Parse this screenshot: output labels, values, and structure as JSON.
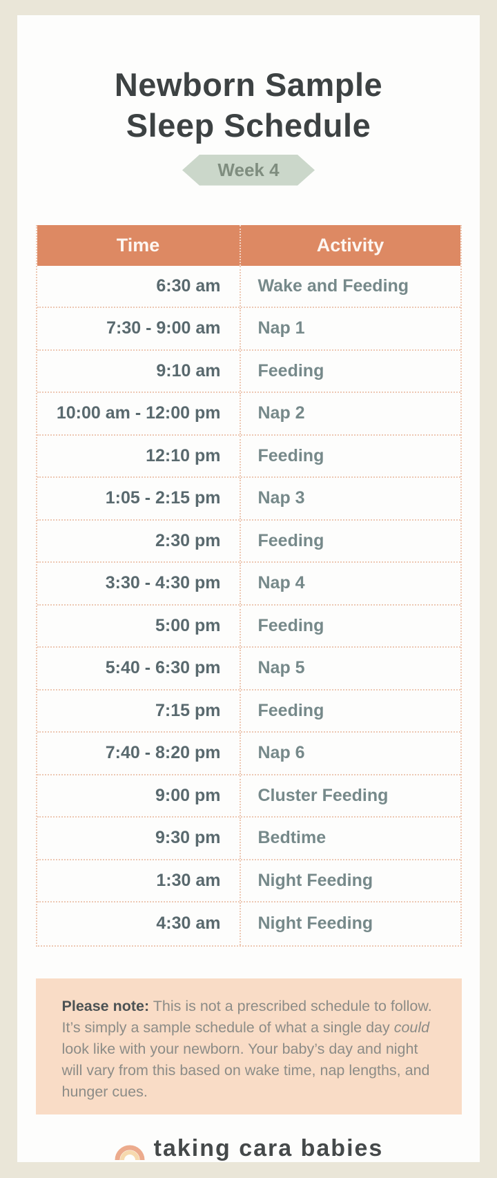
{
  "header": {
    "title_line1": "Newborn Sample",
    "title_line2": "Sleep Schedule",
    "badge_label": "Week 4"
  },
  "table": {
    "columns": [
      "Time",
      "Activity"
    ],
    "rows": [
      {
        "time": "6:30 am",
        "activity": "Wake and Feeding"
      },
      {
        "time": "7:30 - 9:00 am",
        "activity": "Nap 1"
      },
      {
        "time": "9:10 am",
        "activity": "Feeding"
      },
      {
        "time": "10:00 am - 12:00 pm",
        "activity": "Nap 2"
      },
      {
        "time": "12:10 pm",
        "activity": "Feeding"
      },
      {
        "time": "1:05 - 2:15 pm",
        "activity": "Nap 3"
      },
      {
        "time": "2:30 pm",
        "activity": "Feeding"
      },
      {
        "time": "3:30 - 4:30  pm",
        "activity": "Nap 4"
      },
      {
        "time": "5:00 pm",
        "activity": "Feeding"
      },
      {
        "time": "5:40 - 6:30 pm",
        "activity": "Nap 5"
      },
      {
        "time": "7:15 pm",
        "activity": "Feeding"
      },
      {
        "time": "7:40 - 8:20 pm",
        "activity": "Nap 6"
      },
      {
        "time": "9:00 pm",
        "activity": "Cluster Feeding"
      },
      {
        "time": "9:30 pm",
        "activity": "Bedtime"
      },
      {
        "time": "1:30 am",
        "activity": "Night Feeding"
      },
      {
        "time": "4:30 am",
        "activity": "Night Feeding"
      }
    ]
  },
  "note": {
    "label": "Please note:",
    "before_italic": " This is not a prescribed schedule to follow. It’s simply a sample schedule of what a single day ",
    "italic_word": "could",
    "after_italic": " look like with your newborn. Your baby’s day and night will vary from this based on wake time, nap lengths, and hunger cues."
  },
  "footer": {
    "brand": "taking cara babies",
    "icon": "rainbow-icon"
  },
  "colors": {
    "frame": "#eae6d8",
    "card": "#fdfdfc",
    "title": "#3d4243",
    "sage": "#cbd7ca",
    "sage_text": "#7f8d7f",
    "salmon": "#dd8963",
    "header_text": "#fdf6f1",
    "dot": "#edc7b2",
    "time_text": "#59696e",
    "activity_text": "#76898a",
    "peach": "#f9dcc6",
    "note_text": "#8c8c87",
    "note_label": "#4c5254",
    "brand_text": "#45494a",
    "rainbow_outer": "#ecab8d",
    "rainbow_inner": "#f6d9ae"
  }
}
